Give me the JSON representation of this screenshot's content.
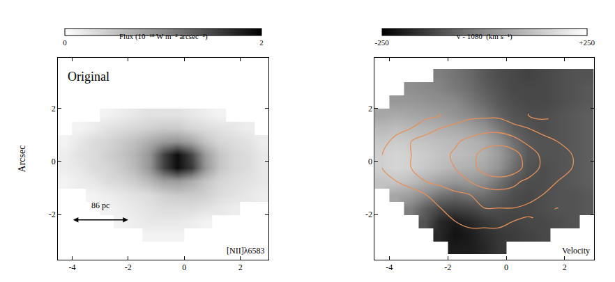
{
  "chart_data": [
    {
      "type": "heatmap",
      "ylabel": "Arcsec",
      "annotations": [
        {
          "text": "Original",
          "x": -4.2,
          "y": 3.2,
          "anchor": "left"
        },
        {
          "text": "[NII]λ6583",
          "x": 2.9,
          "y": -3.35,
          "anchor": "right"
        }
      ],
      "scale_bar": {
        "label": "86 pc",
        "x": [
          -4,
          -2
        ],
        "y": -2.2
      },
      "xlim": [
        -4.5,
        3.0
      ],
      "ylim": [
        -3.7,
        3.9
      ],
      "xticks": [
        -4,
        -2,
        0,
        2
      ],
      "yticks": [
        -2,
        0,
        2
      ],
      "colorbar": {
        "title": "Flux (10⁻¹⁸ W m⁻² arcsec⁻²)",
        "range": [
          0,
          2
        ],
        "ticks": [
          0,
          2
        ]
      },
      "x": [
        -4.25,
        -3.75,
        -3.25,
        -2.75,
        -2.25,
        -1.75,
        -1.25,
        -0.75,
        -0.25,
        0.25,
        0.75,
        1.25,
        1.75,
        2.25,
        2.75
      ],
      "y": [
        -3.25,
        -2.75,
        -2.25,
        -1.75,
        -1.25,
        -0.75,
        -0.25,
        0.25,
        0.75,
        1.25,
        1.75,
        2.25,
        2.75,
        3.25,
        3.75
      ],
      "cells": [
        [
          null,
          null,
          null,
          null,
          null,
          null,
          null,
          null,
          null,
          null,
          null,
          null,
          null,
          null,
          null
        ],
        [
          null,
          null,
          null,
          null,
          null,
          null,
          0.1,
          0.1,
          0.1,
          null,
          null,
          null,
          null,
          null,
          null
        ],
        [
          null,
          null,
          null,
          null,
          0.1,
          0.15,
          0.2,
          0.2,
          0.2,
          0.15,
          0.1,
          null,
          null,
          null,
          null
        ],
        [
          null,
          null,
          null,
          0.1,
          0.15,
          0.2,
          0.25,
          0.3,
          0.3,
          0.3,
          0.25,
          0.2,
          0.15,
          null,
          null
        ],
        [
          null,
          null,
          0.1,
          0.15,
          0.2,
          0.25,
          0.3,
          0.4,
          0.45,
          0.45,
          0.4,
          0.3,
          0.25,
          0.2,
          0.15
        ],
        [
          0.1,
          0.15,
          0.2,
          0.3,
          0.35,
          0.45,
          0.6,
          0.8,
          0.85,
          0.7,
          0.5,
          0.35,
          0.3,
          0.25,
          0.2
        ],
        [
          0.15,
          0.2,
          0.3,
          0.35,
          0.45,
          0.6,
          0.9,
          1.5,
          1.9,
          1.6,
          0.9,
          0.5,
          0.35,
          0.3,
          0.2
        ],
        [
          0.15,
          0.25,
          0.3,
          0.4,
          0.5,
          0.65,
          0.9,
          1.5,
          1.9,
          1.5,
          0.85,
          0.5,
          0.35,
          0.3,
          0.2
        ],
        [
          0.1,
          0.2,
          0.3,
          0.35,
          0.45,
          0.55,
          0.7,
          0.85,
          0.9,
          0.75,
          0.5,
          0.35,
          0.3,
          0.25,
          0.15
        ],
        [
          null,
          0.1,
          0.15,
          0.25,
          0.3,
          0.35,
          0.4,
          0.45,
          0.45,
          0.35,
          0.3,
          0.25,
          0.2,
          0.15,
          null
        ],
        [
          null,
          null,
          null,
          0.1,
          0.15,
          0.2,
          0.25,
          0.25,
          0.25,
          0.2,
          0.15,
          0.1,
          null,
          null,
          null
        ],
        [
          null,
          null,
          null,
          null,
          null,
          null,
          null,
          null,
          null,
          null,
          null,
          null,
          null,
          null,
          null
        ],
        [
          null,
          null,
          null,
          null,
          null,
          null,
          null,
          null,
          null,
          null,
          null,
          null,
          null,
          null,
          null
        ],
        [
          null,
          null,
          null,
          null,
          null,
          null,
          null,
          null,
          null,
          null,
          null,
          null,
          null,
          null,
          null
        ],
        [
          null,
          null,
          null,
          null,
          null,
          null,
          null,
          null,
          null,
          null,
          null,
          null,
          null,
          null,
          null
        ]
      ]
    },
    {
      "type": "heatmap",
      "annotations": [
        {
          "text": "Velocity",
          "x": 2.9,
          "y": -3.35,
          "anchor": "right"
        }
      ],
      "xlim": [
        -4.5,
        3.0
      ],
      "ylim": [
        -3.7,
        3.9
      ],
      "xticks": [
        -4,
        -2,
        0,
        2
      ],
      "yticks": [
        -2,
        0,
        2
      ],
      "colorbar": {
        "title": "v - 1080  (km s⁻¹)",
        "range": [
          -250,
          250
        ],
        "ticks": [
          -250,
          {
            "value": 250,
            "label": "+250"
          }
        ]
      },
      "contour_levels": [
        0.15,
        0.3,
        0.6,
        1.2
      ],
      "x": [
        -4.25,
        -3.75,
        -3.25,
        -2.75,
        -2.25,
        -1.75,
        -1.25,
        -0.75,
        -0.25,
        0.25,
        0.75,
        1.25,
        1.75,
        2.25,
        2.75
      ],
      "y": [
        -3.25,
        -2.75,
        -2.25,
        -1.75,
        -1.25,
        -0.75,
        -0.25,
        0.25,
        0.75,
        1.25,
        1.75,
        2.25,
        2.75,
        3.25,
        3.75
      ],
      "cells": [
        [
          null,
          null,
          null,
          null,
          null,
          -200,
          -200,
          -180,
          -150,
          null,
          null,
          null,
          null,
          null,
          null
        ],
        [
          null,
          null,
          null,
          null,
          -180,
          -220,
          -200,
          -170,
          -150,
          -140,
          -130,
          -120,
          null,
          null,
          null
        ],
        [
          null,
          null,
          null,
          -100,
          -180,
          -200,
          -180,
          -150,
          -130,
          -130,
          -120,
          -120,
          -110,
          -100,
          null
        ],
        [
          null,
          null,
          -20,
          -80,
          -120,
          -130,
          -120,
          -100,
          -110,
          -120,
          -120,
          -110,
          -100,
          -100,
          -90
        ],
        [
          null,
          60,
          40,
          0,
          -40,
          -60,
          -40,
          -50,
          -80,
          -110,
          -120,
          -110,
          -100,
          -100,
          -90
        ],
        [
          120,
          130,
          110,
          80,
          50,
          30,
          30,
          10,
          -40,
          -90,
          -110,
          -110,
          -100,
          -90,
          -80
        ],
        [
          150,
          160,
          150,
          130,
          110,
          90,
          80,
          60,
          20,
          -50,
          -100,
          -110,
          -100,
          -90,
          -80
        ],
        [
          150,
          160,
          150,
          140,
          120,
          110,
          100,
          80,
          40,
          -30,
          -90,
          -100,
          -100,
          -90,
          -80
        ],
        [
          130,
          140,
          130,
          120,
          110,
          100,
          90,
          70,
          20,
          -50,
          -90,
          -100,
          -100,
          -90,
          -80
        ],
        [
          100,
          110,
          100,
          90,
          80,
          70,
          50,
          20,
          -30,
          -80,
          -100,
          -110,
          -100,
          -90,
          -80
        ],
        [
          60,
          70,
          60,
          50,
          40,
          20,
          0,
          -30,
          -70,
          -100,
          -110,
          -110,
          -100,
          -90,
          -80
        ],
        [
          null,
          30,
          30,
          20,
          10,
          0,
          -30,
          -60,
          -90,
          -110,
          -120,
          -120,
          -110,
          -100,
          -90
        ],
        [
          null,
          null,
          10,
          0,
          -10,
          -30,
          -50,
          -80,
          -100,
          -120,
          -120,
          -120,
          -110,
          -100,
          -90
        ],
        [
          null,
          null,
          null,
          null,
          -20,
          -40,
          -60,
          -90,
          -110,
          -120,
          -130,
          -120,
          -110,
          -100,
          -100
        ],
        [
          null,
          null,
          null,
          null,
          null,
          null,
          null,
          null,
          null,
          null,
          null,
          null,
          null,
          null,
          null
        ]
      ]
    }
  ]
}
